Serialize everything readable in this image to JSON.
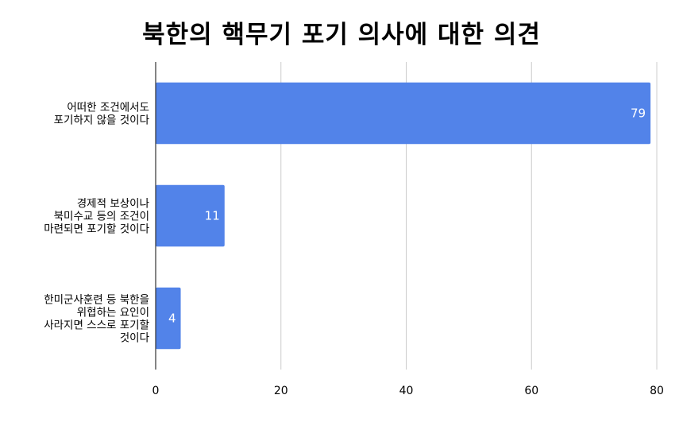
{
  "chart_data": {
    "type": "bar",
    "orientation": "horizontal",
    "title": "북한의 핵무기 포기 의사에 대한 의견",
    "xlabel": "",
    "ylabel": "",
    "categories": [
      [
        "어떠한 조건에서도",
        "포기하지 않을 것이다"
      ],
      [
        "경제적 보상이나",
        "북미수교 등의 조건이",
        "마련되면 포기할 것이다"
      ],
      [
        "한미군사훈련 등 북한을",
        "위협하는 요인이",
        "사라지면 스스로 포기할",
        "것이다"
      ]
    ],
    "values": [
      79,
      11,
      4
    ],
    "xlim": [
      0,
      80
    ],
    "xticks": [
      0,
      20,
      40,
      60,
      80
    ],
    "grid": true,
    "legend": "none",
    "bar_color": "#5283e9",
    "grid_color": "#cccccc",
    "axis_color": "#333333"
  }
}
